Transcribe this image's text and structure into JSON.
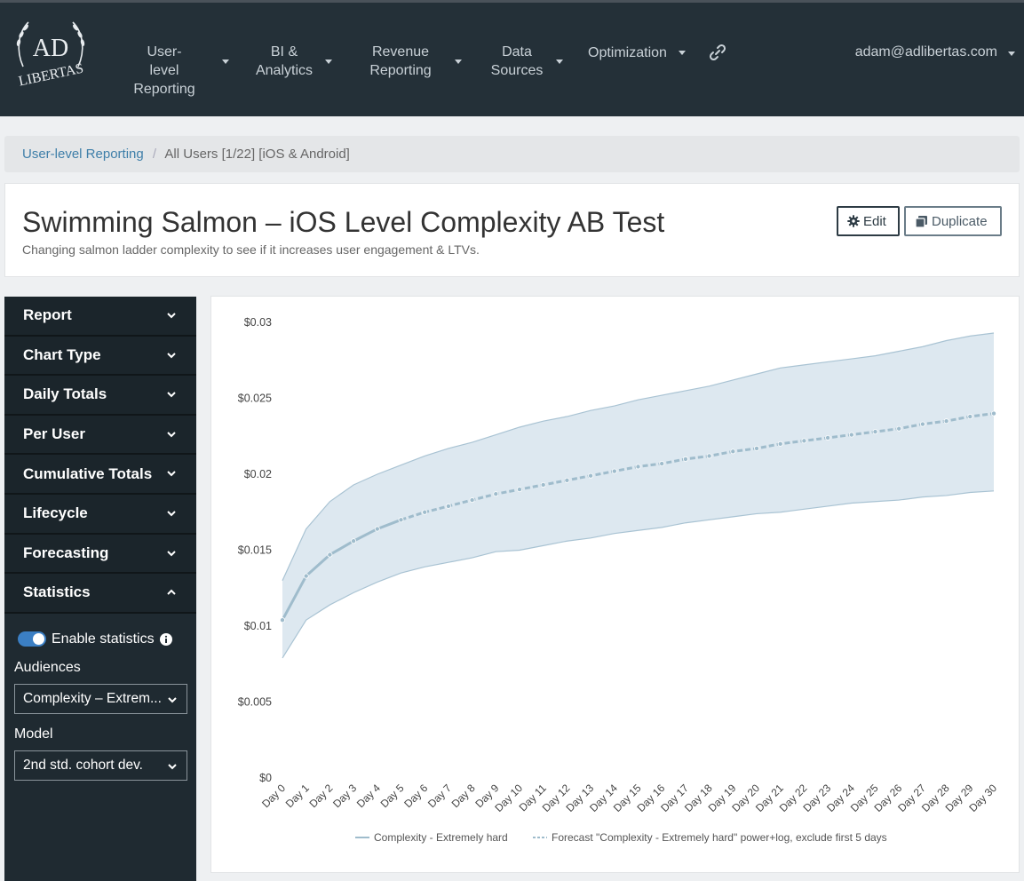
{
  "nav": {
    "logo_top": "AD",
    "logo_bottom": "LIBERTAS",
    "items": [
      {
        "line1": "User-level",
        "line2": "Reporting"
      },
      {
        "line1": "BI &",
        "line2": "Analytics"
      },
      {
        "line1": "Revenue",
        "line2": "Reporting"
      },
      {
        "line1": "Data",
        "line2": "Sources"
      },
      {
        "line1": "Optimization",
        "line2": ""
      }
    ],
    "link_icon": "link-icon",
    "user": "adam@adlibertas.com"
  },
  "breadcrumb": {
    "parent": "User-level Reporting",
    "separator": "/",
    "current": "All Users [1/22] [iOS & Android]"
  },
  "header": {
    "title": "Swimming Salmon – iOS Level Complexity AB Test",
    "subtitle": "Changing salmon ladder complexity to see if it increases user engagement & LTVs.",
    "edit_label": "Edit",
    "duplicate_label": "Duplicate"
  },
  "sidebar": {
    "items": [
      {
        "label": "Report",
        "expanded": false
      },
      {
        "label": "Chart Type",
        "expanded": false
      },
      {
        "label": "Daily Totals",
        "expanded": false
      },
      {
        "label": "Per User",
        "expanded": false
      },
      {
        "label": "Cumulative Totals",
        "expanded": false
      },
      {
        "label": "Lifecycle",
        "expanded": false
      },
      {
        "label": "Forecasting",
        "expanded": false
      },
      {
        "label": "Statistics",
        "expanded": true
      }
    ],
    "statistics": {
      "toggle_label": "Enable statistics",
      "toggle_on": true,
      "audiences_label": "Audiences",
      "audience_value": "Complexity – Extrem...",
      "model_label": "Model",
      "model_value": "2nd std. cohort dev."
    }
  },
  "chart_data": {
    "type": "line",
    "x": [
      "Day 0",
      "Day 1",
      "Day 2",
      "Day 3",
      "Day 4",
      "Day 5",
      "Day 6",
      "Day 7",
      "Day 8",
      "Day 9",
      "Day 10",
      "Day 11",
      "Day 12",
      "Day 13",
      "Day 14",
      "Day 15",
      "Day 16",
      "Day 17",
      "Day 18",
      "Day 19",
      "Day 20",
      "Day 21",
      "Day 22",
      "Day 23",
      "Day 24",
      "Day 25",
      "Day 26",
      "Day 27",
      "Day 28",
      "Day 29",
      "Day 30"
    ],
    "y_ticks": [
      "$0",
      "$0.005",
      "$0.01",
      "$0.015",
      "$0.02",
      "$0.025",
      "$0.03"
    ],
    "ylim": [
      0,
      0.03
    ],
    "series": [
      {
        "name": "Complexity - Extremely hard",
        "values": [
          0.0104,
          0.0133,
          0.0147,
          0.0156,
          0.0164,
          0.017,
          0.0175,
          0.0179,
          0.0183,
          0.0187,
          0.019,
          0.0193,
          0.0196,
          0.0199,
          0.0202,
          0.0205,
          0.0207,
          0.021,
          0.0212,
          0.0215,
          0.0217,
          0.022,
          0.0222,
          0.0224,
          0.0226,
          0.0228,
          0.023,
          0.0233,
          0.0235,
          0.0238,
          0.024
        ],
        "upper": [
          0.013,
          0.0164,
          0.0182,
          0.0193,
          0.02,
          0.0206,
          0.0212,
          0.0217,
          0.0221,
          0.0226,
          0.0231,
          0.0235,
          0.0238,
          0.0242,
          0.0245,
          0.0249,
          0.0252,
          0.0255,
          0.0258,
          0.0262,
          0.0266,
          0.027,
          0.0272,
          0.0274,
          0.0276,
          0.0278,
          0.0281,
          0.0284,
          0.0288,
          0.0291,
          0.0293
        ],
        "lower": [
          0.0079,
          0.0104,
          0.0114,
          0.0122,
          0.0129,
          0.0135,
          0.0139,
          0.0142,
          0.0145,
          0.0149,
          0.015,
          0.0153,
          0.0156,
          0.0158,
          0.0161,
          0.0163,
          0.0165,
          0.0168,
          0.017,
          0.0172,
          0.0174,
          0.0175,
          0.0177,
          0.0179,
          0.0181,
          0.0182,
          0.0183,
          0.0185,
          0.0186,
          0.0188,
          0.0189
        ]
      }
    ],
    "legend": [
      {
        "label": "Complexity - Extremely hard",
        "style": "solid"
      },
      {
        "label": "Forecast \"Complexity - Extremely hard\" power+log, exclude first 5 days",
        "style": "dashed"
      }
    ],
    "legend_position": "bottom",
    "colors": {
      "line": "#9fbccc",
      "band": "#dde8f0",
      "band_edge": "#a9c3d3",
      "dot": "#9fbccc"
    }
  }
}
